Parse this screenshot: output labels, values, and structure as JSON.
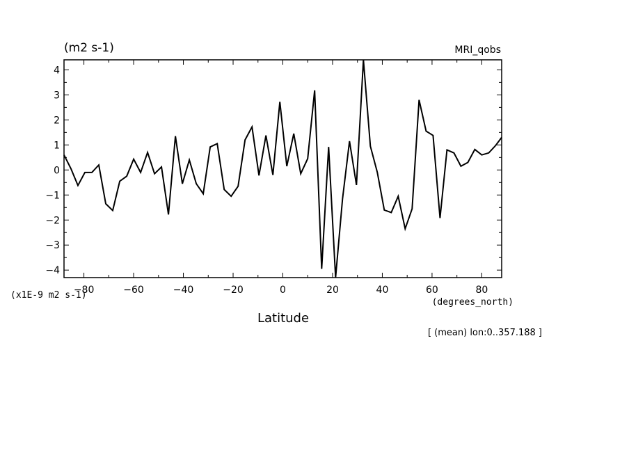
{
  "chart_data": {
    "type": "line",
    "unit_label": "(m2 s-1)",
    "dataset_label": "MRI_qobs",
    "scale_label": "(x1E-9 m2 s-1)",
    "xlabel": "Latitude",
    "xunits_label": "(degrees_north)",
    "footnote": "[ (mean) lon:0..357.188 ]",
    "xlim": [
      -88,
      88
    ],
    "ylim": [
      -4.3,
      4.4
    ],
    "xticks": [
      -80,
      -60,
      -40,
      -20,
      0,
      20,
      40,
      60,
      80
    ],
    "yticks": [
      -4,
      -3,
      -2,
      -1,
      0,
      1,
      2,
      3,
      4
    ],
    "x": [
      -88,
      -85.2,
      -82.4,
      -79.6,
      -76.8,
      -74,
      -71.2,
      -68.4,
      -65.6,
      -62.8,
      -60,
      -57.2,
      -54.4,
      -51.6,
      -48.8,
      -46,
      -43.2,
      -40.4,
      -37.6,
      -34.8,
      -32,
      -29.2,
      -26.4,
      -23.6,
      -20.8,
      -18,
      -15.2,
      -12.4,
      -9.6,
      -6.8,
      -4,
      -1.2,
      1.6,
      4.4,
      7.2,
      10,
      12.8,
      15.6,
      18.4,
      21.2,
      24,
      26.8,
      29.6,
      32.4,
      35.2,
      38,
      40.8,
      43.6,
      46.4,
      49.2,
      52,
      54.8,
      57.6,
      60.4,
      63.2,
      66,
      68.8,
      71.6,
      74.4,
      77.2,
      80,
      82.8,
      85.6,
      88
    ],
    "y": [
      0.6,
      0.05,
      -0.62,
      -0.1,
      -0.1,
      0.2,
      -1.35,
      -1.62,
      -0.45,
      -0.25,
      0.43,
      -0.1,
      0.7,
      -0.15,
      0.12,
      -1.78,
      1.35,
      -0.55,
      0.4,
      -0.55,
      -0.95,
      0.92,
      1.05,
      -0.78,
      -1.05,
      -0.65,
      1.2,
      1.72,
      -0.22,
      1.38,
      -0.2,
      2.72,
      0.15,
      1.45,
      -0.15,
      0.45,
      3.18,
      -3.95,
      0.92,
      -4.3,
      -1.15,
      1.15,
      -0.6,
      4.4,
      0.95,
      -0.1,
      -1.6,
      -1.7,
      -1.05,
      -2.35,
      -1.55,
      2.8,
      1.55,
      1.38,
      -1.92,
      0.8,
      0.68,
      0.15,
      0.3,
      0.82,
      0.6,
      0.68,
      0.98,
      1.3
    ],
    "grid": false,
    "color": "#000000"
  }
}
